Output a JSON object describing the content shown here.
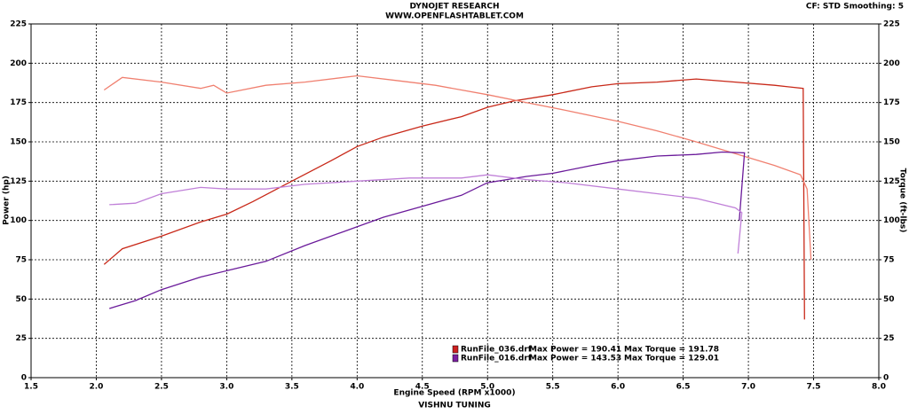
{
  "chart_data": {
    "type": "line",
    "title": "DYNOJET RESEARCH",
    "subtitle": "WWW.OPENFLASHTABLET.COM",
    "corner_note": "CF: STD  Smoothing: 5",
    "footer": "VISHNU TUNING",
    "xlabel": "Engine Speed (RPM x1000)",
    "ylabel": "Power (hp)",
    "y2label": "Torque (ft-lbs)",
    "xlim": [
      1.5,
      8.0
    ],
    "xticks": [
      1.5,
      {
        "value": 2,
        "label": "2.0"
      },
      2.5,
      {
        "value": 3,
        "label": "3.0"
      },
      3.5,
      {
        "value": 4,
        "label": "4.0"
      },
      4.5,
      {
        "value": 5,
        "label": "5.0"
      },
      5.5,
      {
        "value": 6,
        "label": "6.0"
      },
      6.5,
      {
        "value": 7,
        "label": "7.0"
      },
      7.5,
      {
        "value": 8,
        "label": "8.0"
      }
    ],
    "ylim": [
      0,
      225
    ],
    "yticks": [
      0,
      25,
      50,
      75,
      100,
      125,
      150,
      175,
      200,
      225
    ],
    "y2lim": [
      0,
      225
    ],
    "y2ticks": [
      0,
      25,
      50,
      75,
      100,
      125,
      150,
      175,
      200,
      225
    ],
    "grid": true,
    "legend": [
      {
        "file": "RunFile_036.drf",
        "power": "Max Power = 190.41",
        "torque": "Max Torque = 191.78",
        "color": "#cc2020"
      },
      {
        "file": "RunFile_016.drf",
        "power": "Max Power = 143.53",
        "torque": "Max Torque = 129.01",
        "color": "#7a1fa0"
      }
    ],
    "series": [
      {
        "color": "#c82818",
        "axis": "y",
        "x": [
          2.06,
          2.2,
          2.5,
          2.8,
          3.0,
          3.2,
          3.5,
          3.8,
          4.0,
          4.2,
          4.5,
          4.8,
          5.0,
          5.2,
          5.5,
          5.8,
          6.0,
          6.3,
          6.6,
          6.9,
          7.2,
          7.42,
          7.43
        ],
        "values": [
          72,
          82,
          90,
          99,
          104,
          112,
          125,
          138,
          147,
          153,
          160,
          166,
          172,
          176,
          180,
          185,
          187,
          188,
          190,
          188,
          186,
          184,
          37
        ]
      },
      {
        "color": "#f08070",
        "axis": "y2",
        "x": [
          2.06,
          2.2,
          2.5,
          2.8,
          2.9,
          3.0,
          3.3,
          3.6,
          4.0,
          4.3,
          4.6,
          5.0,
          5.3,
          5.6,
          6.0,
          6.3,
          6.6,
          7.0,
          7.2,
          7.4,
          7.45,
          7.48
        ],
        "values": [
          183,
          191,
          188,
          184,
          186,
          181,
          186,
          188,
          192,
          189,
          186,
          180,
          175,
          170,
          163,
          157,
          150,
          140,
          135,
          129,
          120,
          75
        ]
      },
      {
        "color": "#6a1a9a",
        "axis": "y",
        "x": [
          2.1,
          2.3,
          2.5,
          2.8,
          3.0,
          3.3,
          3.6,
          3.9,
          4.2,
          4.5,
          4.8,
          5.0,
          5.3,
          5.5,
          5.8,
          6.0,
          6.3,
          6.6,
          6.8,
          6.97,
          6.93
        ],
        "values": [
          44,
          49,
          56,
          64,
          68,
          74,
          84,
          93,
          102,
          109,
          116,
          124,
          128,
          130,
          135,
          138,
          141,
          142,
          143.5,
          143,
          100
        ]
      },
      {
        "color": "#c080d8",
        "axis": "y2",
        "x": [
          2.1,
          2.3,
          2.5,
          2.8,
          3.0,
          3.3,
          3.6,
          4.0,
          4.4,
          4.8,
          5.0,
          5.3,
          5.6,
          6.0,
          6.3,
          6.6,
          6.9,
          6.95,
          6.92
        ],
        "values": [
          110,
          111,
          117,
          121,
          120,
          120,
          123,
          125,
          127,
          127,
          129,
          126,
          124,
          120,
          117,
          114,
          108,
          105,
          79
        ]
      }
    ]
  }
}
